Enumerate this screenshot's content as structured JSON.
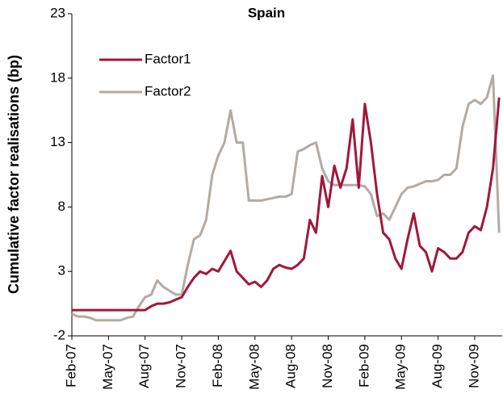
{
  "chart_data": {
    "type": "line",
    "title": "Spain",
    "y_label": "Cumulative factor realisations (bp)",
    "categories": [
      "Feb-07",
      null,
      null,
      null,
      null,
      null,
      "May-07",
      null,
      null,
      null,
      null,
      null,
      "Aug-07",
      null,
      null,
      null,
      null,
      null,
      "Nov-07",
      null,
      null,
      null,
      null,
      null,
      "Feb-08",
      null,
      null,
      null,
      null,
      null,
      "May-08",
      null,
      null,
      null,
      null,
      null,
      "Aug-08",
      null,
      null,
      null,
      null,
      null,
      "Nov-08",
      null,
      null,
      null,
      null,
      null,
      "Feb-09",
      null,
      null,
      null,
      null,
      null,
      "May-09",
      null,
      null,
      null,
      null,
      null,
      "Aug-09",
      null,
      null,
      null,
      null,
      null,
      "Nov-09",
      null,
      null,
      null,
      null
    ],
    "series": [
      {
        "name": "Factor1",
        "color": "#a0183c",
        "values": [
          0,
          0,
          0,
          0,
          0,
          0,
          0,
          0,
          0,
          0,
          0,
          0,
          0,
          0.3,
          0.5,
          0.5,
          0.6,
          0.8,
          1.0,
          1.8,
          2.5,
          3.0,
          2.8,
          3.2,
          3.0,
          3.8,
          4.6,
          3.0,
          2.5,
          2.0,
          2.2,
          1.8,
          2.3,
          3.2,
          3.5,
          3.3,
          3.2,
          3.5,
          4.0,
          7.0,
          6.0,
          10.4,
          8.0,
          11.2,
          9.5,
          11.0,
          14.8,
          9.5,
          16.0,
          13.0,
          9.0,
          6.0,
          5.5,
          4.0,
          3.2,
          5.5,
          7.5,
          5.0,
          4.5,
          3.0,
          4.8,
          4.5,
          4.0,
          4.0,
          4.5,
          6.0,
          6.5,
          6.2,
          8.0,
          11.0,
          16.5
        ]
      },
      {
        "name": "Factor2",
        "color": "#b3aba3",
        "values": [
          -0.3,
          -0.5,
          -0.5,
          -0.6,
          -0.8,
          -0.8,
          -0.8,
          -0.8,
          -0.8,
          -0.6,
          -0.5,
          0.3,
          1.0,
          1.2,
          2.3,
          1.8,
          1.5,
          1.2,
          1.2,
          3.5,
          5.5,
          5.8,
          7.0,
          10.5,
          12.0,
          13.0,
          15.5,
          13.0,
          13.0,
          8.5,
          8.5,
          8.5,
          8.6,
          8.7,
          8.8,
          8.8,
          9.0,
          12.3,
          12.5,
          12.8,
          13.0,
          11.0,
          10.0,
          9.7,
          9.7,
          9.7,
          9.7,
          9.7,
          9.6,
          9.0,
          7.3,
          7.5,
          7.0,
          8.0,
          9.0,
          9.5,
          9.6,
          9.8,
          10.0,
          10.0,
          10.1,
          10.5,
          10.5,
          11.0,
          14.2,
          16.0,
          16.3,
          16.0,
          16.5,
          18.2,
          6.0
        ]
      }
    ],
    "ylim": [
      -2,
      23
    ],
    "yticks": [
      -2,
      3,
      8,
      13,
      18,
      23
    ],
    "legend": "upper left"
  }
}
